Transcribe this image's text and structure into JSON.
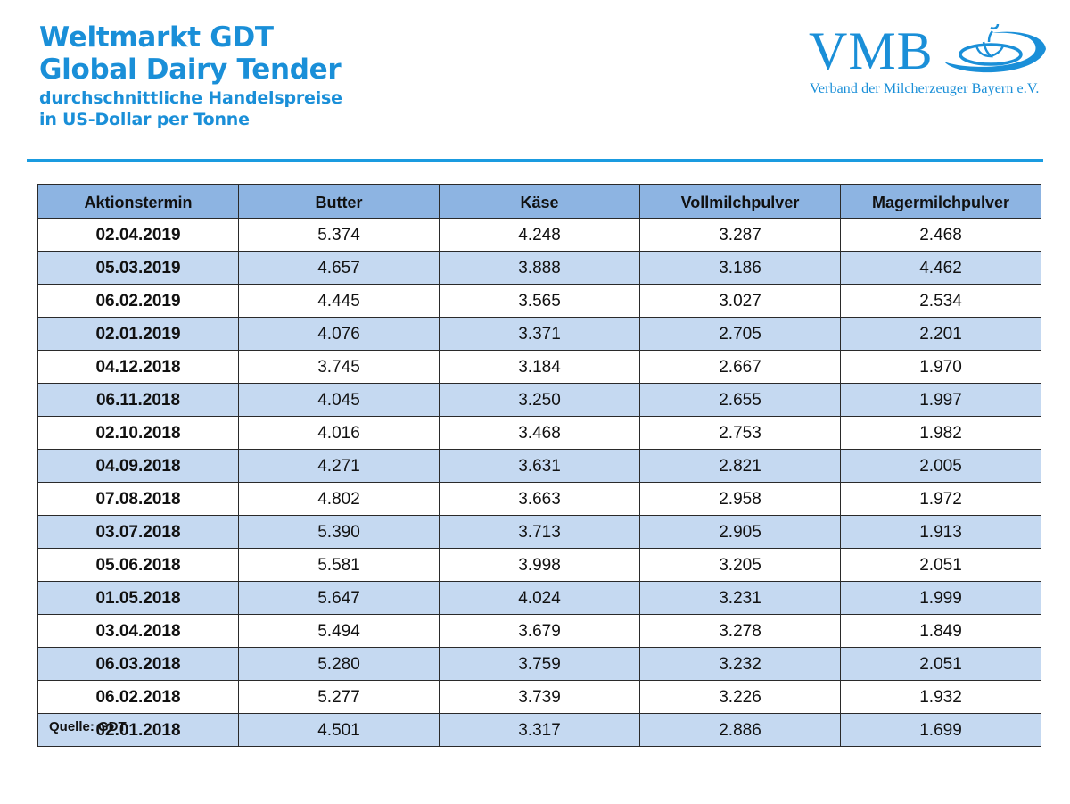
{
  "header": {
    "title_line1": "Weltmarkt GDT",
    "title_line2": "Global Dairy Tender",
    "subtitle_line1": "durchschnittliche Handelspreise",
    "subtitle_line2": "in US-Dollar per Tonne",
    "accent_color": "#1a8fd8"
  },
  "logo": {
    "abbr": "VMB",
    "full_name": "Verband der Milcherzeuger Bayern e.V.",
    "icon": "milk-drop-splash-icon"
  },
  "table": {
    "columns": [
      "Aktionstermin",
      "Butter",
      "Käse",
      "Vollmilchpulver",
      "Magermilchpulver"
    ],
    "rows": [
      [
        "02.04.2019",
        "5.374",
        "4.248",
        "3.287",
        "2.468"
      ],
      [
        "05.03.2019",
        "4.657",
        "3.888",
        "3.186",
        "4.462"
      ],
      [
        "06.02.2019",
        "4.445",
        "3.565",
        "3.027",
        "2.534"
      ],
      [
        "02.01.2019",
        "4.076",
        "3.371",
        "2.705",
        "2.201"
      ],
      [
        "04.12.2018",
        "3.745",
        "3.184",
        "2.667",
        "1.970"
      ],
      [
        "06.11.2018",
        "4.045",
        "3.250",
        "2.655",
        "1.997"
      ],
      [
        "02.10.2018",
        "4.016",
        "3.468",
        "2.753",
        "1.982"
      ],
      [
        "04.09.2018",
        "4.271",
        "3.631",
        "2.821",
        "2.005"
      ],
      [
        "07.08.2018",
        "4.802",
        "3.663",
        "2.958",
        "1.972"
      ],
      [
        "03.07.2018",
        "5.390",
        "3.713",
        "2.905",
        "1.913"
      ],
      [
        "05.06.2018",
        "5.581",
        "3.998",
        "3.205",
        "2.051"
      ],
      [
        "01.05.2018",
        "5.647",
        "4.024",
        "3.231",
        "1.999"
      ],
      [
        "03.04.2018",
        "5.494",
        "3.679",
        "3.278",
        "1.849"
      ],
      [
        "06.03.2018",
        "5.280",
        "3.759",
        "3.232",
        "2.051"
      ],
      [
        "06.02.2018",
        "5.277",
        "3.739",
        "3.226",
        "1.932"
      ],
      [
        "02.01.2018",
        "4.501",
        "3.317",
        "2.886",
        "1.699"
      ]
    ],
    "header_bg": "#8db4e2",
    "alt_row_bg": "#c5d9f1"
  },
  "footer": {
    "source": "Quelle: GDT"
  }
}
